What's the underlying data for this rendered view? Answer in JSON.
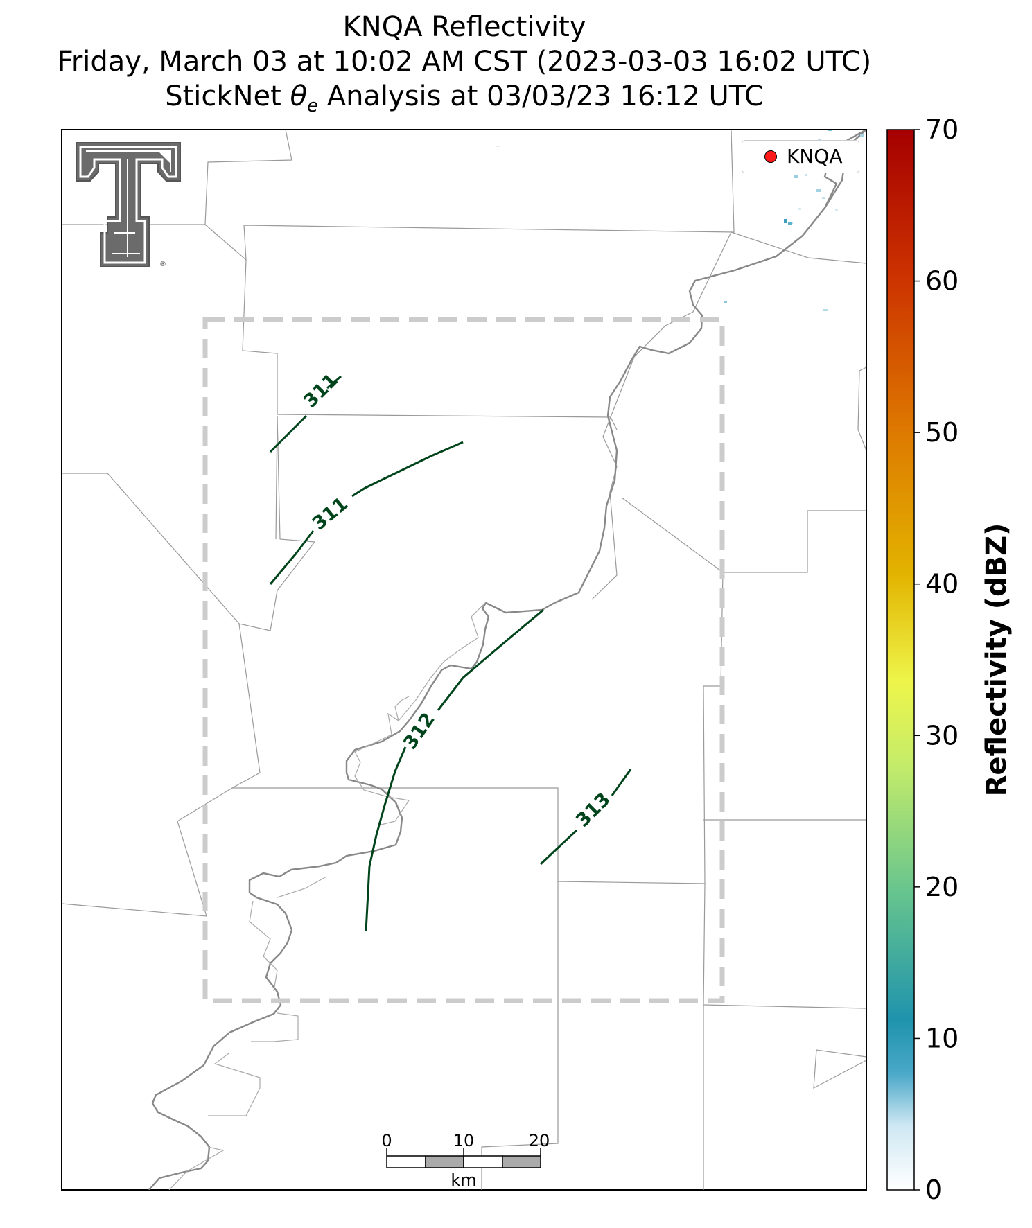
{
  "title": {
    "line1": "KNQA Reflectivity",
    "line2": "Friday, March 03 at 10:02 AM CST (2023-03-03 16:02 UTC)",
    "line3_prefix": "StickNet ",
    "line3_theta": "θ",
    "line3_sub": "e",
    "line3_suffix": " Analysis at 03/03/23 16:12 UTC"
  },
  "legend": {
    "label": "KNQA",
    "marker_color": "#ff1a1a"
  },
  "logo": {
    "name": "texas-tech-double-t-logo",
    "text": "®"
  },
  "colorbar": {
    "label": "Reflectivity (dBZ)",
    "ticks": [
      "0",
      "10",
      "20",
      "30",
      "40",
      "50",
      "60",
      "70"
    ],
    "range": [
      0,
      70
    ],
    "colors": [
      "#ffffff",
      "#1f93ad",
      "#66c48e",
      "#e6f54d",
      "#e2b400",
      "#dd7700",
      "#cc3300",
      "#a50000"
    ]
  },
  "scalebar": {
    "ticks": [
      "0",
      "10",
      "20"
    ],
    "unit": "km"
  },
  "contours": [
    {
      "label": "311",
      "color": "#00441b"
    },
    {
      "label": "311",
      "color": "#00441b"
    },
    {
      "label": "312",
      "color": "#00441b"
    },
    {
      "label": "313",
      "color": "#00441b"
    }
  ],
  "analysis_box": {
    "style": "dashed",
    "color": "#cccccc"
  }
}
